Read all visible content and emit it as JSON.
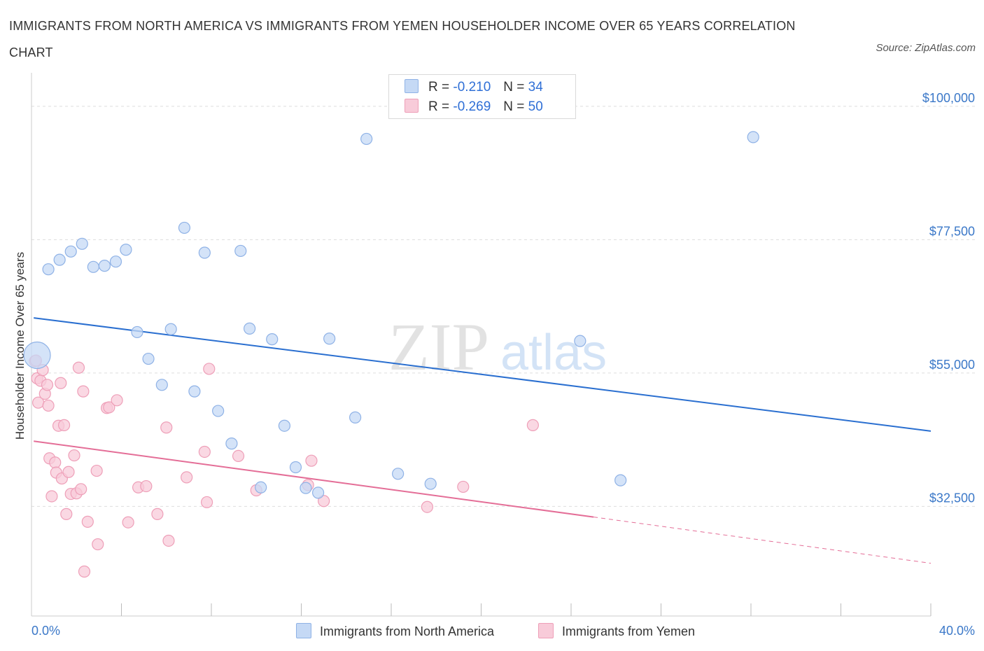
{
  "title": "IMMIGRANTS FROM NORTH AMERICA VS IMMIGRANTS FROM YEMEN HOUSEHOLDER INCOME OVER 65 YEARS CORRELATION CHART",
  "source": "Source: ZipAtlas.com",
  "watermark": {
    "zip": "ZIP",
    "atlas": "atlas"
  },
  "legend": {
    "r_label": "R =",
    "n_label": "N =",
    "series": [
      {
        "name": "Immigrants from North America",
        "r": "-0.210",
        "n": "34"
      },
      {
        "name": "Immigrants from Yemen",
        "r": "-0.269",
        "n": "50"
      }
    ]
  },
  "x_axis": {
    "min_label": "0.0%",
    "max_label": "40.0%"
  },
  "colors": {
    "blue_fill": "#c5d9f5",
    "blue_stroke": "#8fb2e6",
    "blue_line": "#2a6fd0",
    "pink_fill": "#f8cbd9",
    "pink_stroke": "#ee9fb8",
    "pink_line": "#e46e97",
    "grid": "#dddddd",
    "tick_text": "#3b78c8"
  },
  "chart_data": {
    "type": "scatter",
    "title": "IMMIGRANTS FROM NORTH AMERICA VS IMMIGRANTS FROM YEMEN HOUSEHOLDER INCOME OVER 65 YEARS CORRELATION CHART",
    "xlabel": "",
    "ylabel": "Householder Income Over 65 years",
    "xlim": [
      0,
      40
    ],
    "ylim": [
      14000,
      104000
    ],
    "y_ticks": [
      {
        "value": 32500,
        "label": "$32,500"
      },
      {
        "value": 55000,
        "label": "$55,000"
      },
      {
        "value": 77500,
        "label": "$77,500"
      },
      {
        "value": 100000,
        "label": "$100,000"
      }
    ],
    "grid": true,
    "legend_position": "top-center",
    "series": [
      {
        "name": "Immigrants from North America",
        "color": "blue",
        "trend": {
          "x": [
            0.1,
            40.0
          ],
          "y": [
            64300,
            45200
          ]
        },
        "points": [
          {
            "x": 0.25,
            "y": 58000,
            "big": true
          },
          {
            "x": 0.75,
            "y": 72500
          },
          {
            "x": 1.25,
            "y": 74100
          },
          {
            "x": 1.75,
            "y": 75500
          },
          {
            "x": 2.25,
            "y": 76800
          },
          {
            "x": 2.75,
            "y": 72900
          },
          {
            "x": 3.25,
            "y": 73100
          },
          {
            "x": 3.75,
            "y": 73800
          },
          {
            "x": 4.2,
            "y": 75800
          },
          {
            "x": 4.7,
            "y": 61900
          },
          {
            "x": 5.2,
            "y": 57400
          },
          {
            "x": 5.8,
            "y": 53000
          },
          {
            "x": 6.2,
            "y": 62400
          },
          {
            "x": 6.8,
            "y": 79500
          },
          {
            "x": 7.25,
            "y": 51900
          },
          {
            "x": 7.7,
            "y": 75300
          },
          {
            "x": 8.3,
            "y": 48600
          },
          {
            "x": 8.9,
            "y": 43100
          },
          {
            "x": 9.3,
            "y": 75600
          },
          {
            "x": 9.7,
            "y": 62500
          },
          {
            "x": 10.2,
            "y": 35700
          },
          {
            "x": 10.7,
            "y": 60700
          },
          {
            "x": 11.25,
            "y": 46100
          },
          {
            "x": 11.75,
            "y": 39100
          },
          {
            "x": 12.2,
            "y": 35600
          },
          {
            "x": 12.75,
            "y": 34800
          },
          {
            "x": 13.25,
            "y": 60800
          },
          {
            "x": 14.4,
            "y": 47500
          },
          {
            "x": 14.9,
            "y": 94500
          },
          {
            "x": 16.3,
            "y": 38000
          },
          {
            "x": 17.75,
            "y": 36300
          },
          {
            "x": 24.4,
            "y": 60400
          },
          {
            "x": 26.2,
            "y": 36900
          },
          {
            "x": 32.1,
            "y": 94800
          }
        ]
      },
      {
        "name": "Immigrants from Yemen",
        "color": "pink",
        "trend": {
          "x": [
            0.1,
            25.0
          ],
          "y": [
            43500,
            30700
          ]
        },
        "trend_dashed": {
          "x": [
            25.0,
            40.0
          ],
          "y": [
            30700,
            22900
          ]
        },
        "points": [
          {
            "x": 0.15,
            "y": 57000
          },
          {
            "x": 0.25,
            "y": 54100
          },
          {
            "x": 0.3,
            "y": 50000
          },
          {
            "x": 0.4,
            "y": 53700
          },
          {
            "x": 0.5,
            "y": 55500
          },
          {
            "x": 0.6,
            "y": 51500
          },
          {
            "x": 0.7,
            "y": 53000
          },
          {
            "x": 0.75,
            "y": 49500
          },
          {
            "x": 0.8,
            "y": 40600
          },
          {
            "x": 0.9,
            "y": 34200
          },
          {
            "x": 1.05,
            "y": 39900
          },
          {
            "x": 1.1,
            "y": 38200
          },
          {
            "x": 1.2,
            "y": 46100
          },
          {
            "x": 1.3,
            "y": 53300
          },
          {
            "x": 1.35,
            "y": 37200
          },
          {
            "x": 1.45,
            "y": 46200
          },
          {
            "x": 1.55,
            "y": 31200
          },
          {
            "x": 1.65,
            "y": 38300
          },
          {
            "x": 1.75,
            "y": 34600
          },
          {
            "x": 1.9,
            "y": 41100
          },
          {
            "x": 2.0,
            "y": 34700
          },
          {
            "x": 2.1,
            "y": 55900
          },
          {
            "x": 2.2,
            "y": 35400
          },
          {
            "x": 2.3,
            "y": 51900
          },
          {
            "x": 2.35,
            "y": 21500
          },
          {
            "x": 2.5,
            "y": 29900
          },
          {
            "x": 2.9,
            "y": 38500
          },
          {
            "x": 2.95,
            "y": 26100
          },
          {
            "x": 3.35,
            "y": 49100
          },
          {
            "x": 3.45,
            "y": 49200
          },
          {
            "x": 3.8,
            "y": 50400
          },
          {
            "x": 4.3,
            "y": 29800
          },
          {
            "x": 4.75,
            "y": 35700
          },
          {
            "x": 5.1,
            "y": 35900
          },
          {
            "x": 5.6,
            "y": 31200
          },
          {
            "x": 6.0,
            "y": 45800
          },
          {
            "x": 6.1,
            "y": 26700
          },
          {
            "x": 6.9,
            "y": 37400
          },
          {
            "x": 7.7,
            "y": 41700
          },
          {
            "x": 7.8,
            "y": 33200
          },
          {
            "x": 7.9,
            "y": 55700
          },
          {
            "x": 9.2,
            "y": 41000
          },
          {
            "x": 10.0,
            "y": 35200
          },
          {
            "x": 12.3,
            "y": 36100
          },
          {
            "x": 12.45,
            "y": 40200
          },
          {
            "x": 13.0,
            "y": 33400
          },
          {
            "x": 17.6,
            "y": 32400
          },
          {
            "x": 19.2,
            "y": 35800
          },
          {
            "x": 22.3,
            "y": 46200
          },
          {
            "x": 0.2,
            "y": 57100
          }
        ]
      }
    ]
  }
}
